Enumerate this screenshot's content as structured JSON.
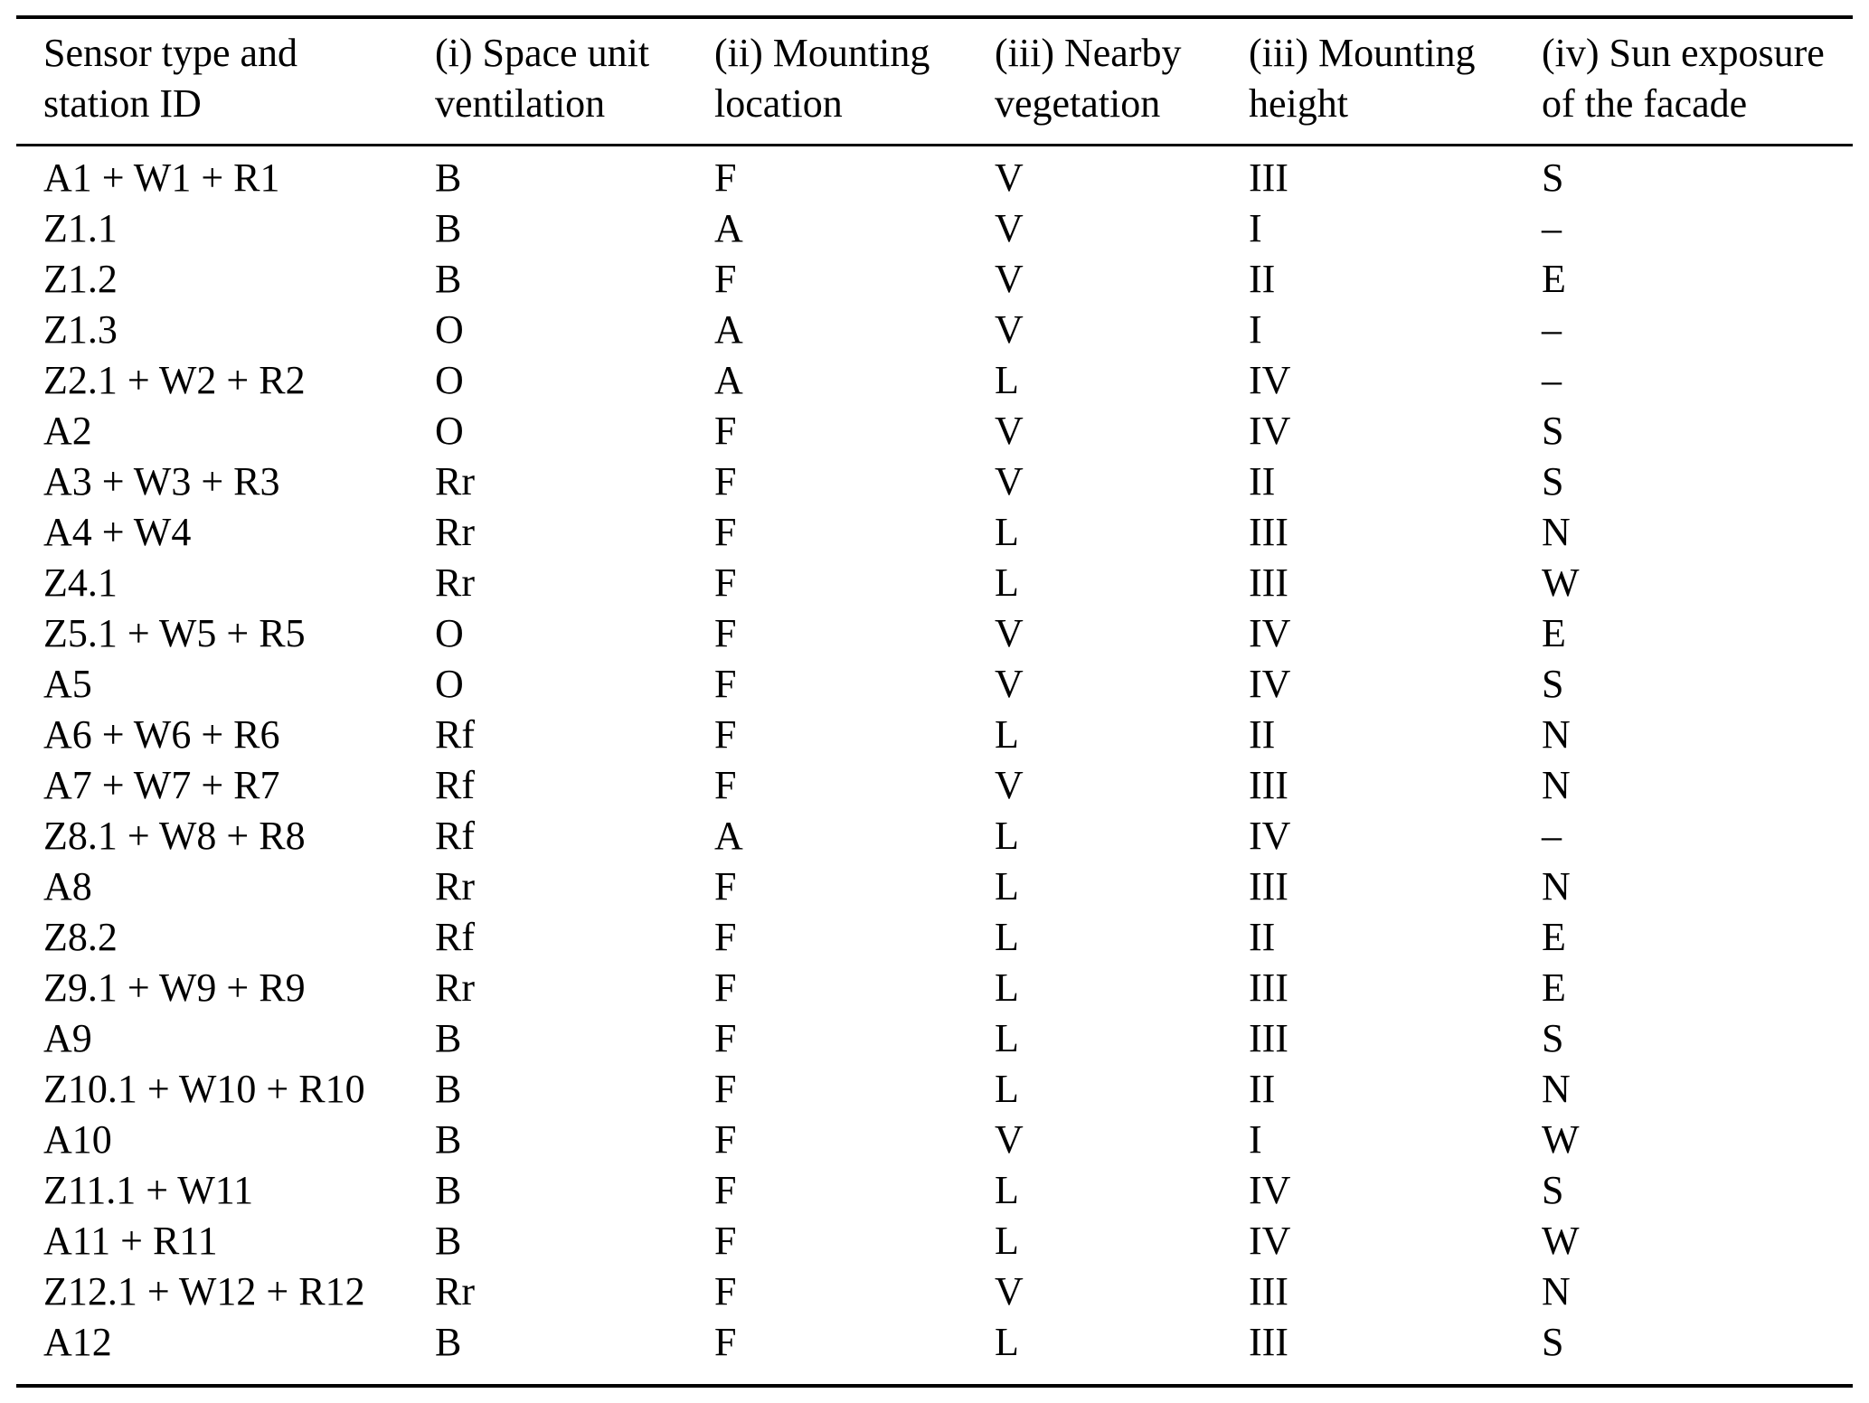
{
  "table": {
    "header": [
      {
        "line1": "Sensor type and",
        "line2": "station ID"
      },
      {
        "line1": "(i) Space unit",
        "line2": "ventilation"
      },
      {
        "line1": "(ii) Mounting",
        "line2": "location"
      },
      {
        "line1": "(iii) Nearby",
        "line2": "vegetation"
      },
      {
        "line1": "(iii) Mounting",
        "line2": "height"
      },
      {
        "line1": "(iv) Sun exposure",
        "line2": "of the facade"
      }
    ],
    "rows": [
      [
        "A1 + W1 + R1",
        "B",
        "F",
        "V",
        "III",
        "S"
      ],
      [
        "Z1.1",
        "B",
        "A",
        "V",
        "I",
        "–"
      ],
      [
        "Z1.2",
        "B",
        "F",
        "V",
        "II",
        "E"
      ],
      [
        "Z1.3",
        "O",
        "A",
        "V",
        "I",
        "–"
      ],
      [
        "Z2.1 + W2 + R2",
        "O",
        "A",
        "L",
        "IV",
        "–"
      ],
      [
        "A2",
        "O",
        "F",
        "V",
        "IV",
        "S"
      ],
      [
        "A3 + W3 + R3",
        "Rr",
        "F",
        "V",
        "II",
        "S"
      ],
      [
        "A4 + W4",
        "Rr",
        "F",
        "L",
        "III",
        "N"
      ],
      [
        "Z4.1",
        "Rr",
        "F",
        "L",
        "III",
        "W"
      ],
      [
        "Z5.1 + W5 + R5",
        "O",
        "F",
        "V",
        "IV",
        "E"
      ],
      [
        "A5",
        "O",
        "F",
        "V",
        "IV",
        "S"
      ],
      [
        "A6 + W6 + R6",
        "Rf",
        "F",
        "L",
        "II",
        "N"
      ],
      [
        "A7 + W7 + R7",
        "Rf",
        "F",
        "V",
        "III",
        "N"
      ],
      [
        "Z8.1 + W8 + R8",
        "Rf",
        "A",
        "L",
        "IV",
        "–"
      ],
      [
        "A8",
        "Rr",
        "F",
        "L",
        "III",
        "N"
      ],
      [
        "Z8.2",
        "Rf",
        "F",
        "L",
        "II",
        "E"
      ],
      [
        "Z9.1 + W9 + R9",
        "Rr",
        "F",
        "L",
        "III",
        "E"
      ],
      [
        "A9",
        "B",
        "F",
        "L",
        "III",
        "S"
      ],
      [
        "Z10.1 + W10 + R10",
        "B",
        "F",
        "L",
        "II",
        "N"
      ],
      [
        "A10",
        "B",
        "F",
        "V",
        "I",
        "W"
      ],
      [
        "Z11.1 + W11",
        "B",
        "F",
        "L",
        "IV",
        "S"
      ],
      [
        "A11 + R11",
        "B",
        "F",
        "L",
        "IV",
        "W"
      ],
      [
        "Z12.1 + W12 + R12",
        "Rr",
        "F",
        "V",
        "III",
        "N"
      ],
      [
        "A12",
        "B",
        "F",
        "L",
        "III",
        "S"
      ]
    ],
    "missing_value_glyph": "–",
    "text_color": "#000000",
    "background_color": "#ffffff"
  }
}
